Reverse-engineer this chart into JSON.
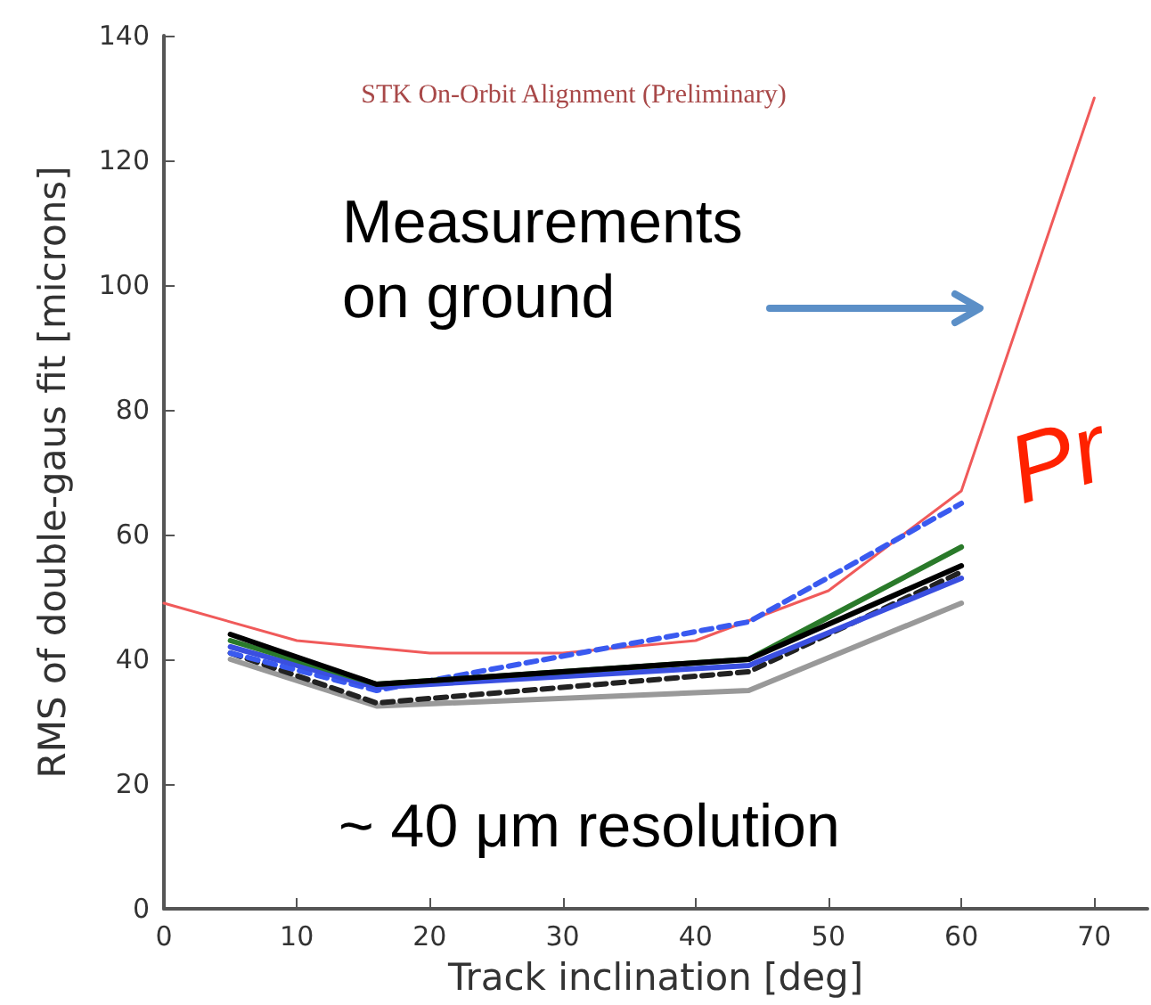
{
  "chart_data": {
    "type": "line",
    "xlabel": "Track inclination [deg]",
    "ylabel": "RMS of double-gaus fit [microns]",
    "annotations": [
      "STK On-Orbit Alignment (Preliminary)",
      "Measurements\non ground",
      "~ 40 μm resolution",
      "Pr"
    ],
    "xlim": [
      0,
      74
    ],
    "xticks": [
      0,
      10,
      20,
      30,
      40,
      50,
      60,
      70
    ],
    "ylim": [
      0,
      140
    ],
    "yticks": [
      0,
      20,
      40,
      60,
      80,
      100,
      120,
      140
    ],
    "grid": false,
    "marker": "none",
    "series": [
      {
        "color": "#f05a5a",
        "x": [
          0,
          10,
          20,
          30,
          40,
          50,
          60,
          70
        ],
        "values": [
          49,
          43,
          41,
          41,
          43,
          51,
          67,
          130
        ],
        "line_style": "solid"
      },
      {
        "color": "#999999",
        "x": [
          5,
          16,
          44,
          60
        ],
        "values": [
          40,
          32.5,
          35,
          49
        ],
        "line_style": "solid"
      },
      {
        "color": "#222222",
        "x": [
          5,
          16,
          44,
          60
        ],
        "values": [
          41,
          33,
          38,
          54
        ],
        "line_style": "dashed"
      },
      {
        "color": "#3a5af0",
        "x": [
          5,
          16,
          44,
          60
        ],
        "values": [
          41,
          35,
          46,
          65
        ],
        "line_style": "dashed"
      },
      {
        "color": "#3a4fe0",
        "x": [
          5,
          16,
          44,
          60
        ],
        "values": [
          42,
          35.5,
          39,
          53
        ],
        "line_style": "solid"
      },
      {
        "color": "#2a7a2a",
        "x": [
          5,
          16,
          44,
          60
        ],
        "values": [
          43,
          36,
          40,
          58
        ],
        "line_style": "solid"
      },
      {
        "color": "#000000",
        "x": [
          5,
          16,
          44,
          60
        ],
        "values": [
          44,
          36,
          40,
          55
        ],
        "line_style": "solid"
      }
    ]
  }
}
